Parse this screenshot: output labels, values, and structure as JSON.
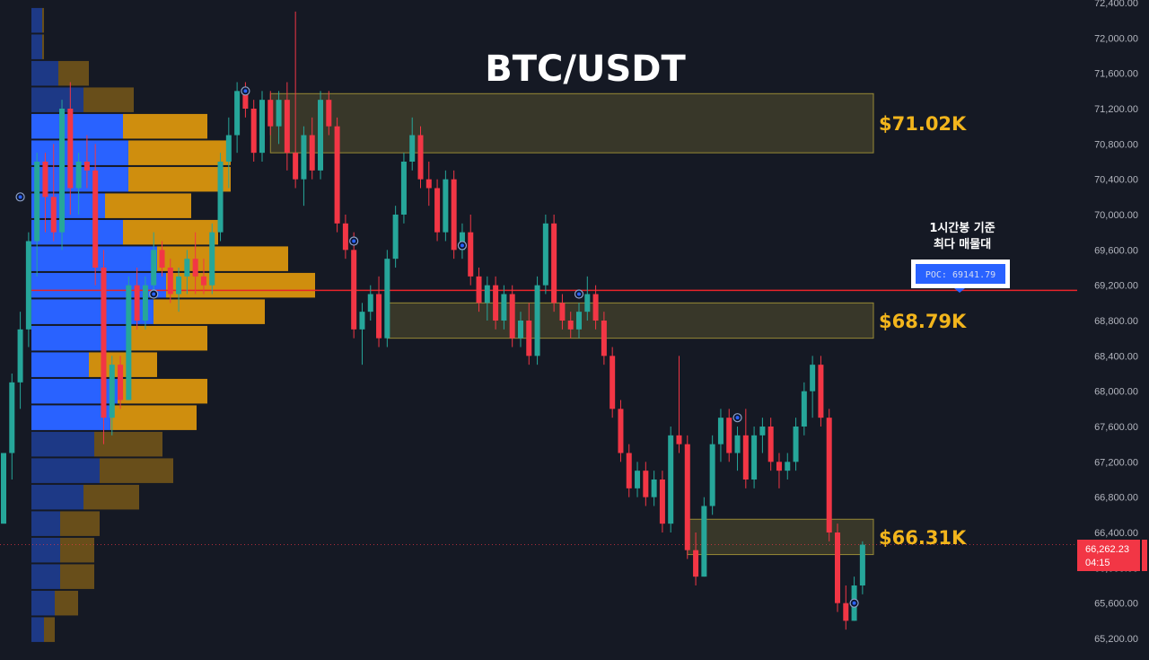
{
  "chart_data": {
    "type": "candlestick",
    "title": "BTC/USDT",
    "timeframe_note_line1": "1시간봉 기준",
    "timeframe_note_line2": "최다 매물대",
    "poc_label": "POC: 69141.79",
    "poc_price": 69141.79,
    "last_price_label": "66,262.23",
    "last_price": 66262.23,
    "countdown_label": "04:15",
    "colors": {
      "background": "#151924",
      "up": "#26a69a",
      "down": "#f23645",
      "profile_up": "#2962ff",
      "profile_down": "#f0a30a",
      "zone": "#b5a33a",
      "poc_line": "#e8242a",
      "level_text": "#f2b51c",
      "axis_text": "#b2b5be"
    },
    "yaxis": {
      "min": 65000,
      "max": 72500,
      "tick_values": [
        72400,
        72000,
        71600,
        71200,
        70800,
        70400,
        70000,
        69600,
        69200,
        68800,
        68400,
        68000,
        67600,
        67200,
        66800,
        66400,
        66000,
        65600,
        65200
      ],
      "tick_labels": [
        "72,400.00",
        "72,000.00",
        "71,600.00",
        "71,200.00",
        "70,800.00",
        "70,400.00",
        "70,000.00",
        "69,600.00",
        "69,200.00",
        "68,800.00",
        "68,400.00",
        "68,000.00",
        "67,600.00",
        "67,200.00",
        "66,800.00",
        "66,400.00",
        "66,000.00",
        "65,600.00",
        "65,200.00"
      ]
    },
    "zones": [
      {
        "label": "$71.02K",
        "low": 70700,
        "high": 71370,
        "start_bar": 32
      },
      {
        "label": "$68.79K",
        "low": 68600,
        "high": 69000,
        "start_bar": 46
      },
      {
        "label": "$66.31K",
        "low": 66150,
        "high": 66550,
        "start_bar": 82
      }
    ],
    "volume_profile": [
      {
        "price": 72200,
        "up": 12,
        "down": 2,
        "highlight": false
      },
      {
        "price": 71900,
        "up": 12,
        "down": 2,
        "highlight": false
      },
      {
        "price": 71600,
        "up": 30,
        "down": 34,
        "highlight": false
      },
      {
        "price": 71300,
        "up": 58,
        "down": 56,
        "highlight": false
      },
      {
        "price": 71000,
        "up": 102,
        "down": 94,
        "highlight": true
      },
      {
        "price": 70700,
        "up": 108,
        "down": 114,
        "highlight": true
      },
      {
        "price": 70400,
        "up": 108,
        "down": 114,
        "highlight": true
      },
      {
        "price": 70100,
        "up": 82,
        "down": 96,
        "highlight": true
      },
      {
        "price": 69800,
        "up": 102,
        "down": 106,
        "highlight": true
      },
      {
        "price": 69500,
        "up": 140,
        "down": 146,
        "highlight": true
      },
      {
        "price": 69200,
        "up": 150,
        "down": 166,
        "highlight": true
      },
      {
        "price": 68900,
        "up": 136,
        "down": 124,
        "highlight": true
      },
      {
        "price": 68600,
        "up": 108,
        "down": 88,
        "highlight": true
      },
      {
        "price": 68300,
        "up": 64,
        "down": 76,
        "highlight": true
      },
      {
        "price": 68000,
        "up": 96,
        "down": 100,
        "highlight": true
      },
      {
        "price": 67700,
        "up": 88,
        "down": 96,
        "highlight": true
      },
      {
        "price": 67400,
        "up": 70,
        "down": 76,
        "highlight": false
      },
      {
        "price": 67100,
        "up": 76,
        "down": 82,
        "highlight": false
      },
      {
        "price": 66800,
        "up": 58,
        "down": 62,
        "highlight": false
      },
      {
        "price": 66500,
        "up": 32,
        "down": 44,
        "highlight": false
      },
      {
        "price": 66200,
        "up": 32,
        "down": 38,
        "highlight": false
      },
      {
        "price": 65900,
        "up": 32,
        "down": 38,
        "highlight": false
      },
      {
        "price": 65600,
        "up": 26,
        "down": 26,
        "highlight": false
      },
      {
        "price": 65300,
        "up": 14,
        "down": 12,
        "highlight": false
      }
    ],
    "candles": [
      [
        66500,
        67300,
        66500,
        67300
      ],
      [
        67300,
        68200,
        67000,
        68100
      ],
      [
        68100,
        68900,
        67800,
        68700
      ],
      [
        68700,
        69800,
        68500,
        69700
      ],
      [
        69700,
        70700,
        69300,
        70600
      ],
      [
        70600,
        70700,
        69800,
        70200
      ],
      [
        70200,
        70800,
        69700,
        69800
      ],
      [
        69800,
        71300,
        69600,
        71200
      ],
      [
        71200,
        71500,
        70000,
        70300
      ],
      [
        70300,
        70700,
        70000,
        70600
      ],
      [
        70600,
        70900,
        70300,
        70500
      ],
      [
        70500,
        70800,
        69200,
        69400
      ],
      [
        69400,
        69600,
        67400,
        67700
      ],
      [
        67700,
        68400,
        67500,
        68300
      ],
      [
        68300,
        68400,
        67800,
        67900
      ],
      [
        67900,
        69300,
        67900,
        69200
      ],
      [
        69200,
        69400,
        68700,
        68800
      ],
      [
        68800,
        69300,
        68700,
        69200
      ],
      [
        69200,
        69800,
        69100,
        69600
      ],
      [
        69600,
        69700,
        69300,
        69400
      ],
      [
        69400,
        69500,
        69000,
        69100
      ],
      [
        69100,
        69400,
        68900,
        69300
      ],
      [
        69300,
        69600,
        69100,
        69500
      ],
      [
        69500,
        69800,
        69100,
        69300
      ],
      [
        69300,
        69500,
        69100,
        69200
      ],
      [
        69200,
        69900,
        69100,
        69800
      ],
      [
        69800,
        70700,
        69700,
        70600
      ],
      [
        70600,
        71100,
        70300,
        70900
      ],
      [
        70900,
        71500,
        70700,
        71400
      ],
      [
        71400,
        71500,
        71100,
        71200
      ],
      [
        71200,
        71300,
        70600,
        70700
      ],
      [
        70700,
        71400,
        70600,
        71300
      ],
      [
        71300,
        71400,
        70900,
        71000
      ],
      [
        71000,
        71400,
        70800,
        71300
      ],
      [
        71300,
        71500,
        70500,
        70700
      ],
      [
        70700,
        72300,
        70300,
        70400
      ],
      [
        70400,
        71000,
        70100,
        70900
      ],
      [
        70900,
        71100,
        70400,
        70500
      ],
      [
        70500,
        71400,
        70400,
        71300
      ],
      [
        71300,
        71400,
        70900,
        71000
      ],
      [
        71000,
        71100,
        69800,
        69900
      ],
      [
        69900,
        70000,
        69500,
        69600
      ],
      [
        69600,
        69800,
        68600,
        68700
      ],
      [
        68700,
        69000,
        68300,
        68900
      ],
      [
        68900,
        69200,
        68800,
        69100
      ],
      [
        69100,
        69300,
        68500,
        68600
      ],
      [
        68600,
        69600,
        68500,
        69500
      ],
      [
        69500,
        70100,
        69400,
        70000
      ],
      [
        70000,
        70700,
        69900,
        70600
      ],
      [
        70600,
        71100,
        70500,
        70900
      ],
      [
        70900,
        71000,
        70300,
        70400
      ],
      [
        70400,
        70600,
        70100,
        70300
      ],
      [
        70300,
        70400,
        69700,
        69800
      ],
      [
        69800,
        70500,
        69700,
        70400
      ],
      [
        70400,
        70500,
        69500,
        69600
      ],
      [
        69600,
        69900,
        69500,
        69800
      ],
      [
        69800,
        70000,
        69200,
        69300
      ],
      [
        69300,
        69400,
        68900,
        69000
      ],
      [
        69000,
        69300,
        68800,
        69200
      ],
      [
        69200,
        69300,
        68700,
        68800
      ],
      [
        68800,
        69200,
        68700,
        69100
      ],
      [
        69100,
        69200,
        68500,
        68600
      ],
      [
        68600,
        68900,
        68500,
        68800
      ],
      [
        68800,
        69000,
        68300,
        68400
      ],
      [
        68400,
        69300,
        68300,
        69200
      ],
      [
        69200,
        70000,
        69100,
        69900
      ],
      [
        69900,
        70000,
        68900,
        69000
      ],
      [
        69000,
        69100,
        68700,
        68800
      ],
      [
        68800,
        68900,
        68600,
        68700
      ],
      [
        68700,
        69000,
        68600,
        68900
      ],
      [
        68900,
        69300,
        68800,
        69100
      ],
      [
        69100,
        69200,
        68700,
        68800
      ],
      [
        68800,
        68900,
        68300,
        68400
      ],
      [
        68400,
        68500,
        67700,
        67800
      ],
      [
        67800,
        67900,
        67200,
        67300
      ],
      [
        67300,
        67400,
        66800,
        66900
      ],
      [
        66900,
        67200,
        66800,
        67100
      ],
      [
        67100,
        67200,
        66700,
        66800
      ],
      [
        66800,
        67100,
        66700,
        67000
      ],
      [
        67000,
        67100,
        66400,
        66500
      ],
      [
        66500,
        67600,
        66400,
        67500
      ],
      [
        67500,
        68400,
        67300,
        67400
      ],
      [
        67400,
        67500,
        66100,
        66200
      ],
      [
        66200,
        66400,
        65800,
        65900
      ],
      [
        65900,
        66800,
        65900,
        66700
      ],
      [
        66700,
        67500,
        66600,
        67400
      ],
      [
        67400,
        67800,
        67200,
        67700
      ],
      [
        67700,
        67800,
        67200,
        67300
      ],
      [
        67300,
        67600,
        67100,
        67500
      ],
      [
        67500,
        67800,
        66900,
        67000
      ],
      [
        67000,
        67600,
        66900,
        67500
      ],
      [
        67500,
        67700,
        67300,
        67600
      ],
      [
        67600,
        67700,
        67100,
        67200
      ],
      [
        67200,
        67300,
        66900,
        67100
      ],
      [
        67100,
        67300,
        67000,
        67200
      ],
      [
        67200,
        67700,
        67100,
        67600
      ],
      [
        67600,
        68100,
        67500,
        68000
      ],
      [
        68000,
        68400,
        67700,
        68300
      ],
      [
        68300,
        68400,
        67600,
        67700
      ],
      [
        67700,
        67800,
        66300,
        66400
      ],
      [
        66400,
        66500,
        65500,
        65600
      ],
      [
        65600,
        65800,
        65300,
        65400
      ],
      [
        65400,
        65900,
        65400,
        65800
      ],
      [
        65800,
        66300,
        65700,
        66262.23
      ]
    ],
    "signal_markers": [
      {
        "bar": 18,
        "price": 69100
      },
      {
        "bar": 29,
        "price": 71400
      },
      {
        "bar": 42,
        "price": 69700
      },
      {
        "bar": 55,
        "price": 69650
      },
      {
        "bar": 69,
        "price": 69100
      },
      {
        "bar": 88,
        "price": 67700
      },
      {
        "bar": 102,
        "price": 65600
      },
      {
        "bar": 2,
        "price": 70200
      }
    ]
  }
}
